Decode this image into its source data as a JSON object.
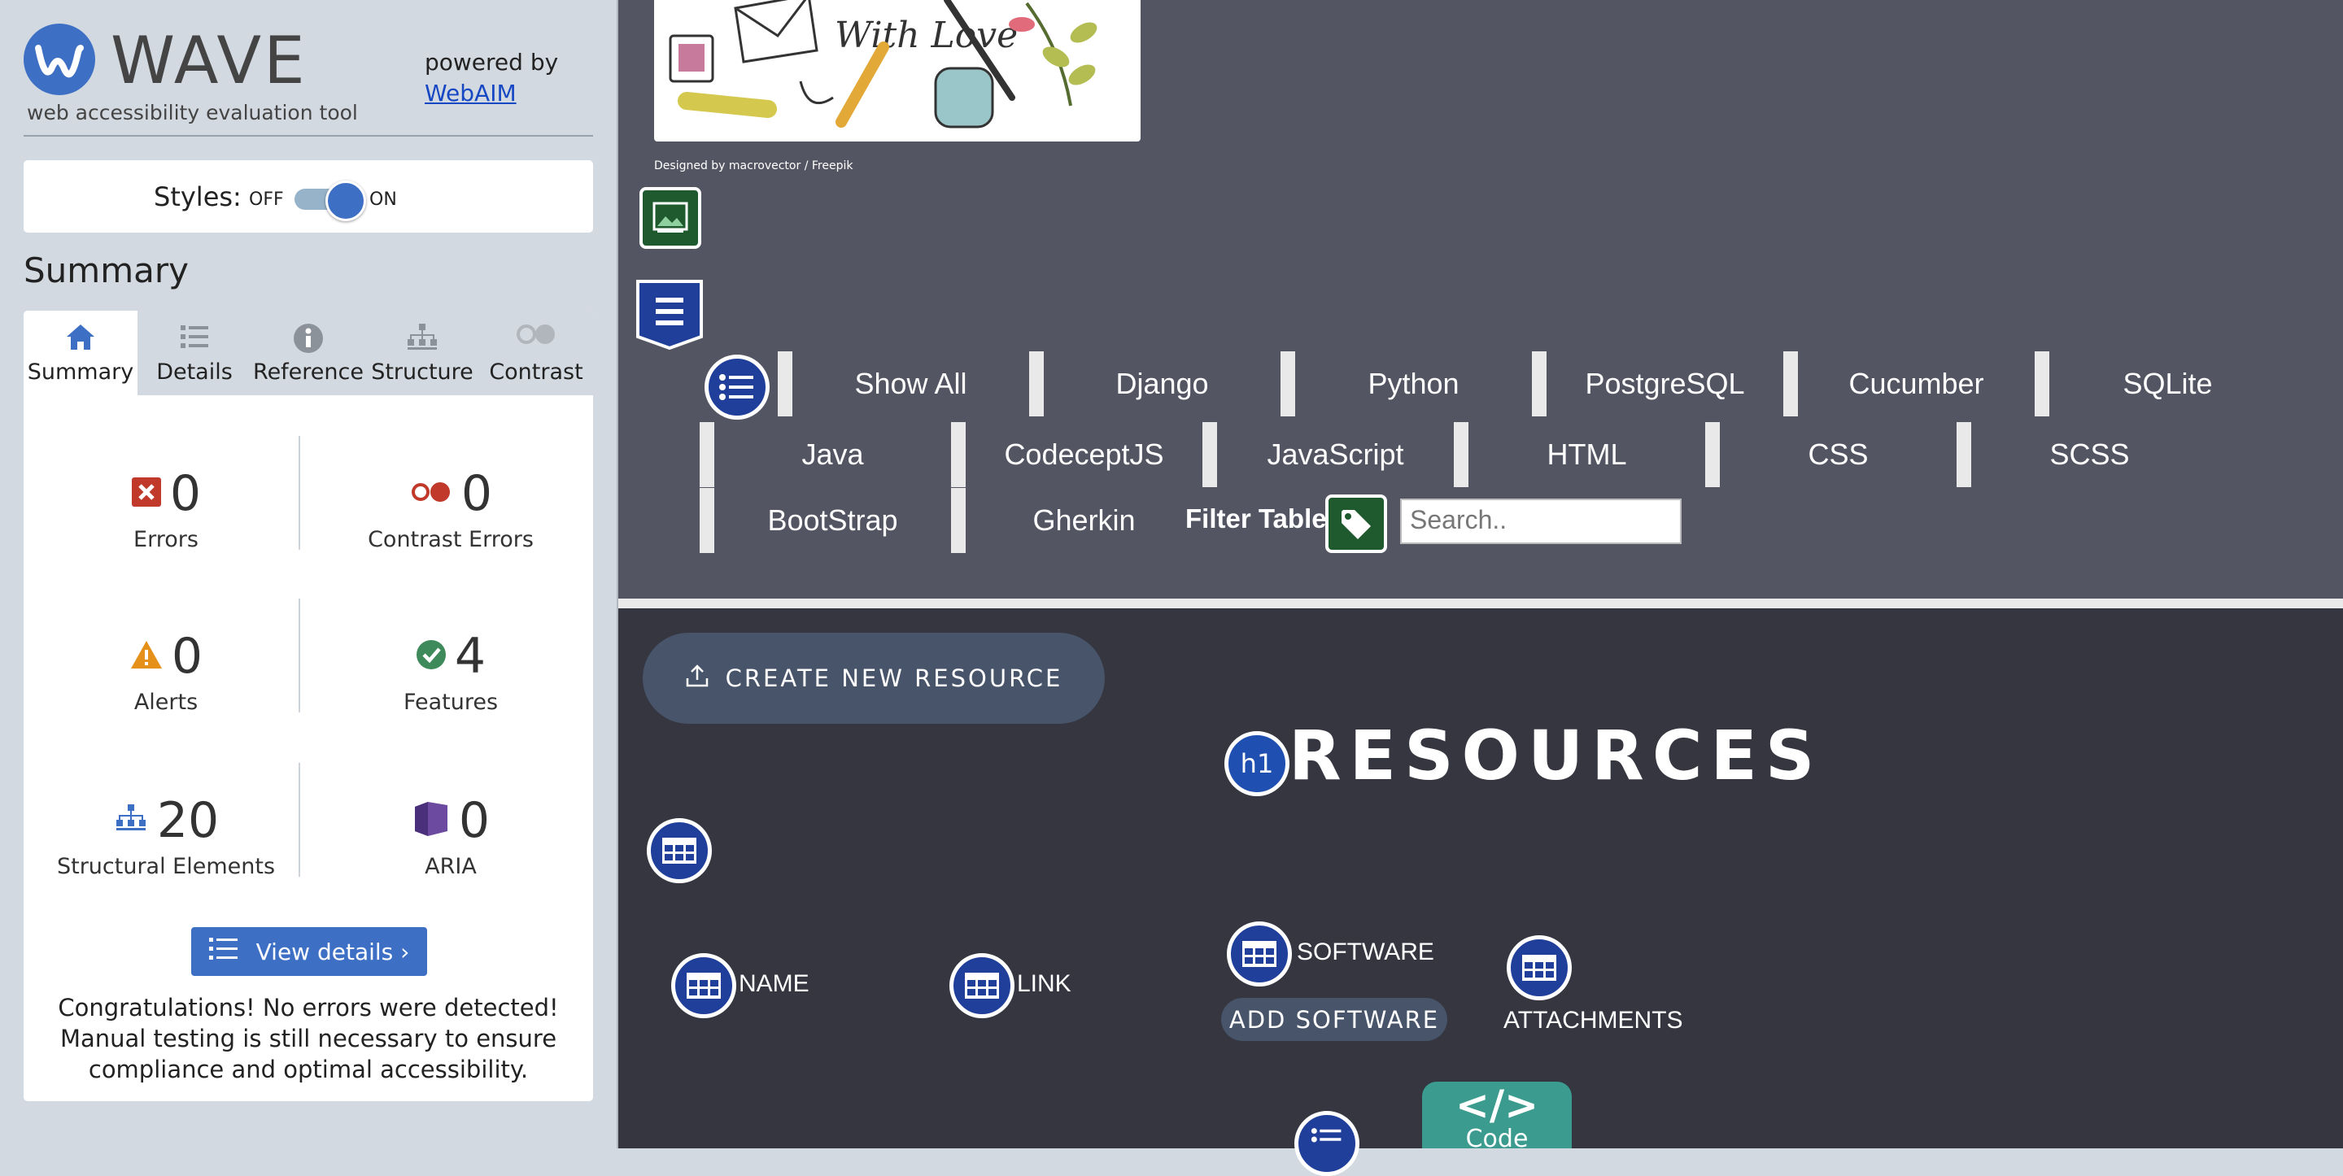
{
  "wave": {
    "logo_word": "WAVE",
    "logo_sub": "web accessibility evaluation tool",
    "powered_by": "powered by",
    "webaim_link": "WebAIM",
    "styles_label": "Styles:",
    "styles_off": "OFF",
    "styles_on": "ON",
    "summary_title": "Summary",
    "tabs": [
      {
        "label": "Summary",
        "icon": "home-icon",
        "active": true
      },
      {
        "label": "Details",
        "icon": "list-icon",
        "active": false
      },
      {
        "label": "Reference",
        "icon": "info-icon",
        "active": false
      },
      {
        "label": "Structure",
        "icon": "hierarchy-icon",
        "active": false
      },
      {
        "label": "Contrast",
        "icon": "contrast-icon",
        "active": false
      }
    ],
    "stats": {
      "errors": {
        "count": "0",
        "label": "Errors",
        "color": "#c0392b"
      },
      "contrast_errors": {
        "count": "0",
        "label": "Contrast Errors",
        "color": "#c0392b"
      },
      "alerts": {
        "count": "0",
        "label": "Alerts",
        "color": "#e5901b"
      },
      "features": {
        "count": "4",
        "label": "Features",
        "color": "#3f8a5a"
      },
      "structural": {
        "count": "20",
        "label": "Structural Elements",
        "color": "#3d70c5"
      },
      "aria": {
        "count": "0",
        "label": "ARIA",
        "color": "#5a3d8a"
      }
    },
    "view_details": "View details ›",
    "congrats": "Congratulations! No errors were detected! Manual testing is still necessary to ensure compliance and optimal accessibility."
  },
  "page": {
    "credit": "Designed by macrovector / Freepik",
    "filters_row1": [
      "Show All",
      "Django",
      "Python",
      "PostgreSQL",
      "Cucumber",
      "SQLite"
    ],
    "filters_row2": [
      "Java",
      "CodeceptJS",
      "JavaScript",
      "HTML",
      "CSS",
      "SCSS"
    ],
    "filters_row3": [
      "BootStrap",
      "Gherkin"
    ],
    "filter_label": "Filter Table:",
    "search_placeholder": "Search..",
    "create_button": "CREATE NEW RESOURCE",
    "h1_badge": "h1",
    "resources_title": "RESOURCES",
    "columns": {
      "name": "NAME",
      "link": "LINK",
      "software": "SOFTWARE",
      "attachments": "ATTACHMENTS"
    },
    "add_software": "ADD SOFTWARE",
    "code_badge_symbol": "</>",
    "code_badge_word": "Code"
  },
  "colors": {
    "wave_blue": "#3d70c5",
    "top_bg": "#545562",
    "bottom_bg": "#353640",
    "button_bg": "#475469",
    "code_teal": "#3a9b8e"
  }
}
